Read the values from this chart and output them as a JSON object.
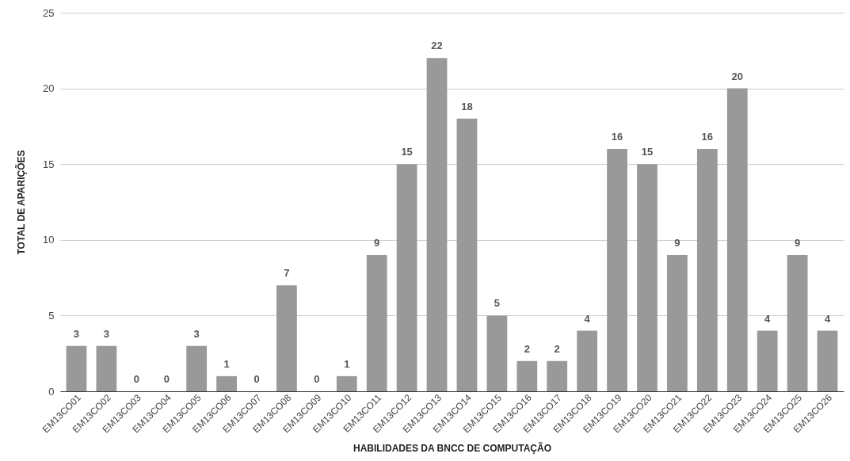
{
  "chart_data": {
    "type": "bar",
    "xlabel": "HABILIDADES DA BNCC DE COMPUTAÇÃO",
    "ylabel": "TOTAL DE APARIÇÕES",
    "categories": [
      "EM13CO01",
      "EM13CO02",
      "EM13CO03",
      "EM13CO04",
      "EM13CO05",
      "EM13CO06",
      "EM13CO07",
      "EM13CO08",
      "EM13CO09",
      "EM13CO10",
      "EM13CO11",
      "EM13CO12",
      "EM13CO13",
      "EM13CO14",
      "EM13CO15",
      "EM13CO16",
      "EM13CO17",
      "EM13CO18",
      "EM13CO19",
      "EM13CO20",
      "EM13CO21",
      "EM13CO22",
      "EM13CO23",
      "EM13CO24",
      "EM13CO25",
      "EM13CO26"
    ],
    "values": [
      3,
      3,
      0,
      0,
      3,
      1,
      0,
      7,
      0,
      1,
      9,
      15,
      22,
      18,
      5,
      2,
      2,
      4,
      16,
      15,
      9,
      16,
      20,
      4,
      9,
      4
    ],
    "color": "#999999",
    "ylim": [
      0,
      25
    ],
    "yticks": [
      0,
      5,
      10,
      15,
      20,
      25
    ],
    "grid": "y",
    "data_labels": true
  }
}
